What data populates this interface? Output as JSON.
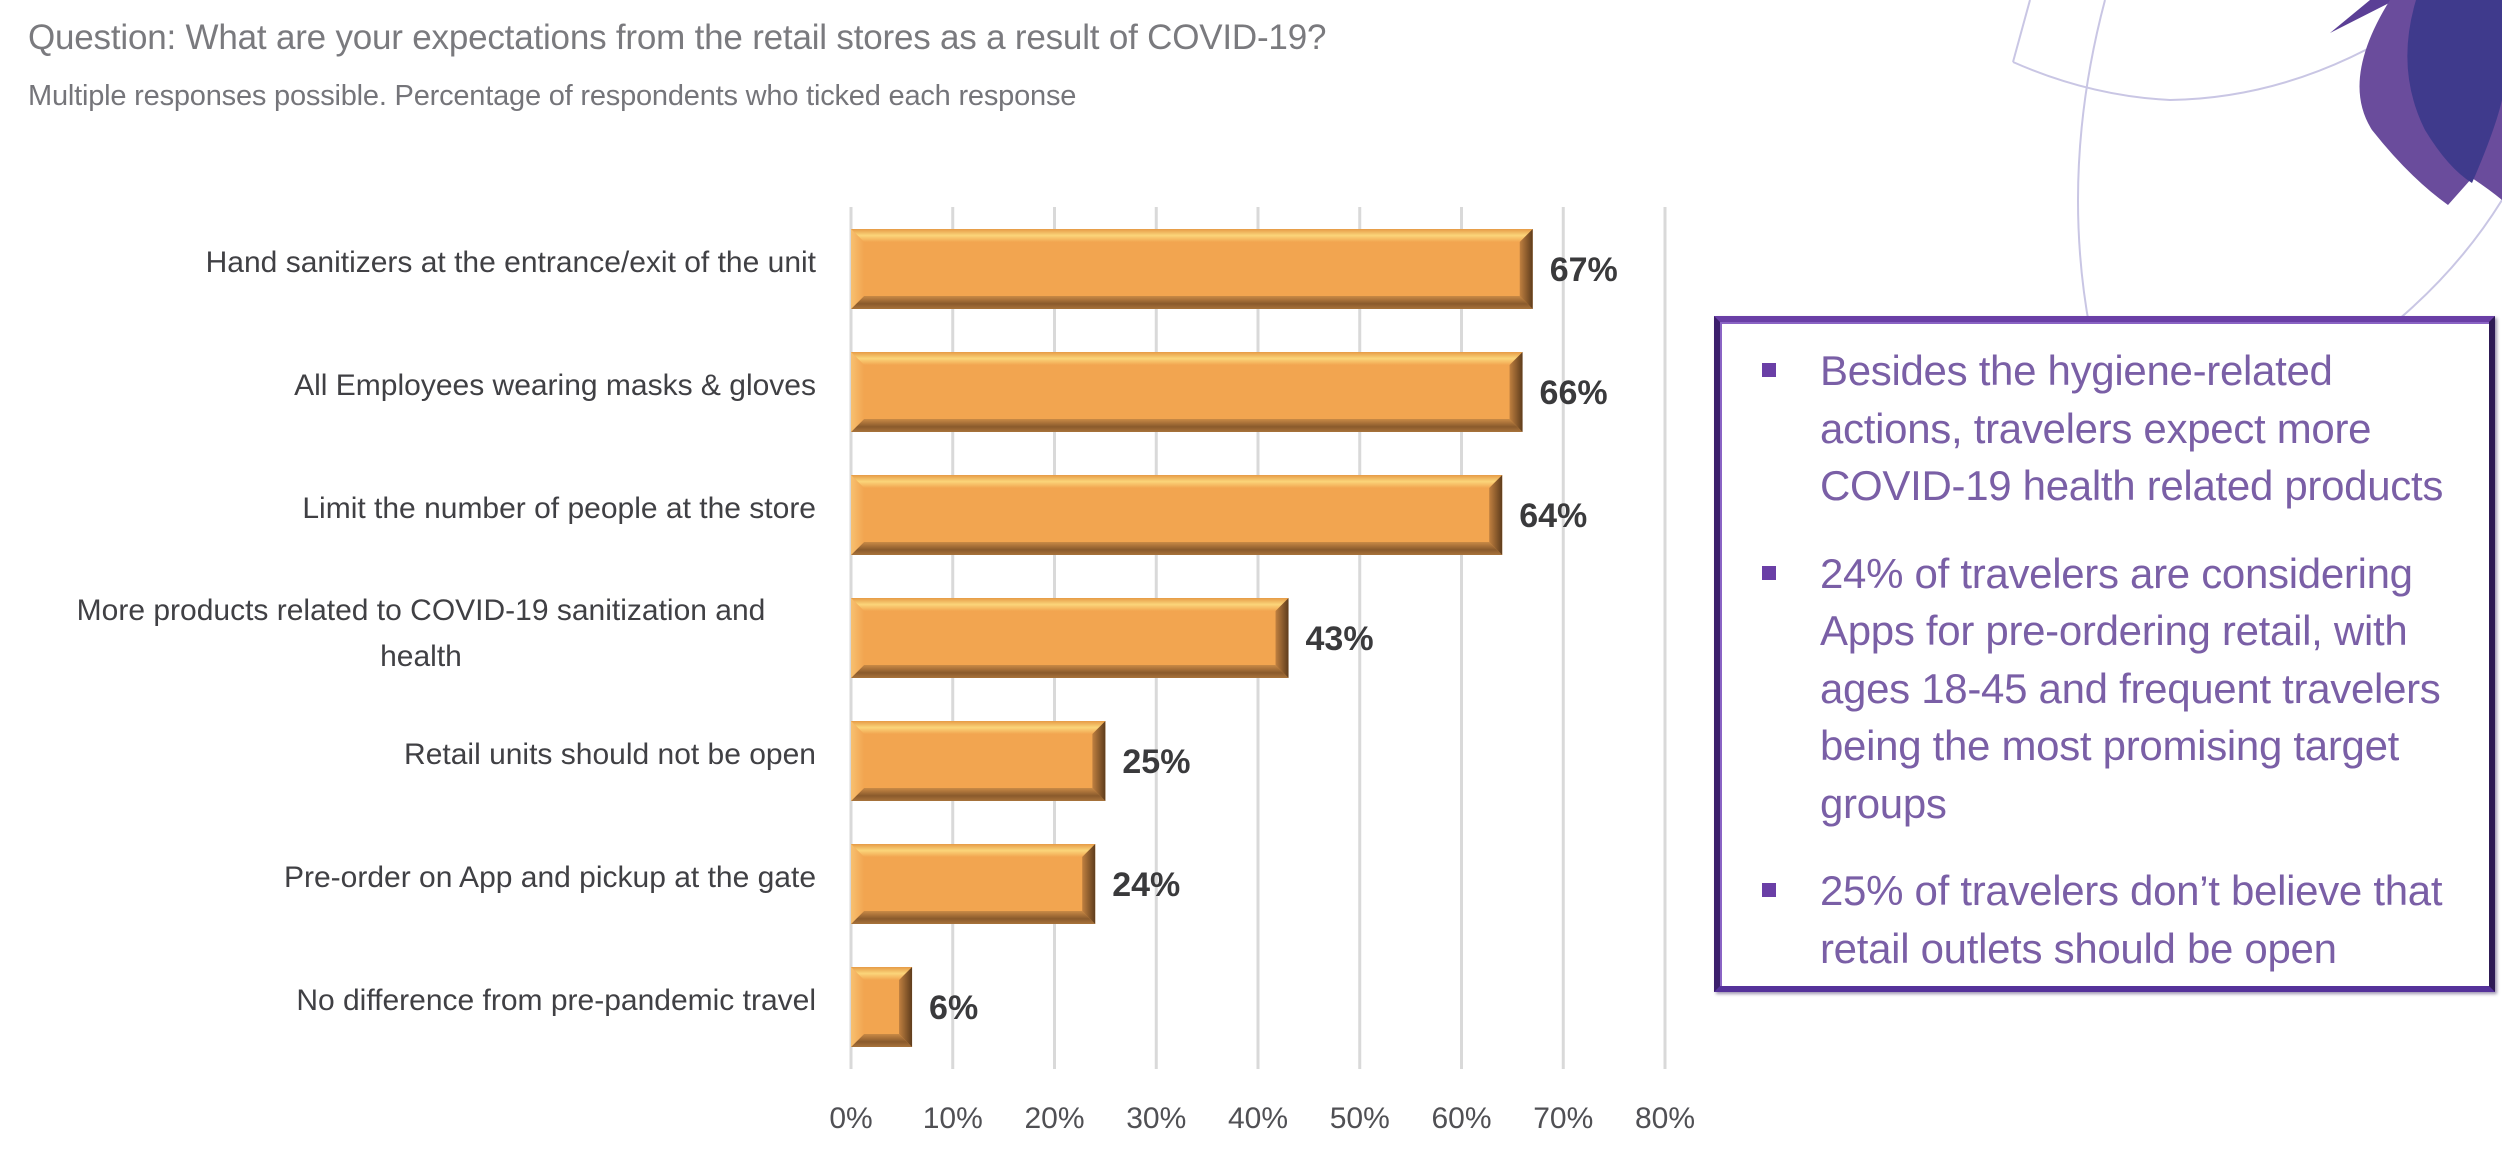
{
  "header": {
    "title": "Question: What are your expectations from the retail stores as a result of COVID-19?",
    "subtitle": "Multiple responses possible. Percentage of respondents who ticked each response"
  },
  "chart_data": {
    "type": "bar",
    "orientation": "horizontal",
    "title": "Question: What are your expectations from the retail stores as a result of COVID-19?",
    "subtitle": "Multiple responses possible. Percentage of respondents who ticked each response",
    "categories": [
      [
        "Hand sanitizers at the entrance/exit of the unit"
      ],
      [
        "All Employees wearing masks & gloves"
      ],
      [
        "Limit the number of people at the store"
      ],
      [
        "More products related to COVID-19 sanitization and",
        "health"
      ],
      [
        "Retail units should not be open"
      ],
      [
        "Pre-order on App and pickup at the gate"
      ],
      [
        "No difference from pre-pandemic travel"
      ]
    ],
    "values": [
      67,
      66,
      64,
      43,
      25,
      24,
      6
    ],
    "value_labels": [
      "67%",
      "66%",
      "64%",
      "43%",
      "25%",
      "24%",
      "6%"
    ],
    "xlabel": "",
    "ylabel": "",
    "xlim": [
      0,
      80
    ],
    "xticks": [
      0,
      10,
      20,
      30,
      40,
      50,
      60,
      70,
      80
    ],
    "xtick_labels": [
      "0%",
      "10%",
      "20%",
      "30%",
      "40%",
      "50%",
      "60%",
      "70%",
      "80%"
    ],
    "grid": "vertical",
    "legend": "none",
    "bar_color": "#f2a550"
  },
  "callout": {
    "bullets": [
      "Besides the hygiene-related actions, travelers expect more COVID-19 health related products",
      "24% of travelers are considering Apps for pre-ordering retail, with ages 18-45 and frequent travelers being the most promising target groups",
      "25% of travelers don’t believe that retail outlets should be open"
    ],
    "text_color": "#7a5fa6",
    "border_color": "#4b2a80"
  },
  "colors": {
    "accent_purple": "#6a4c9c",
    "accent_indigo": "#3f3a8c"
  }
}
